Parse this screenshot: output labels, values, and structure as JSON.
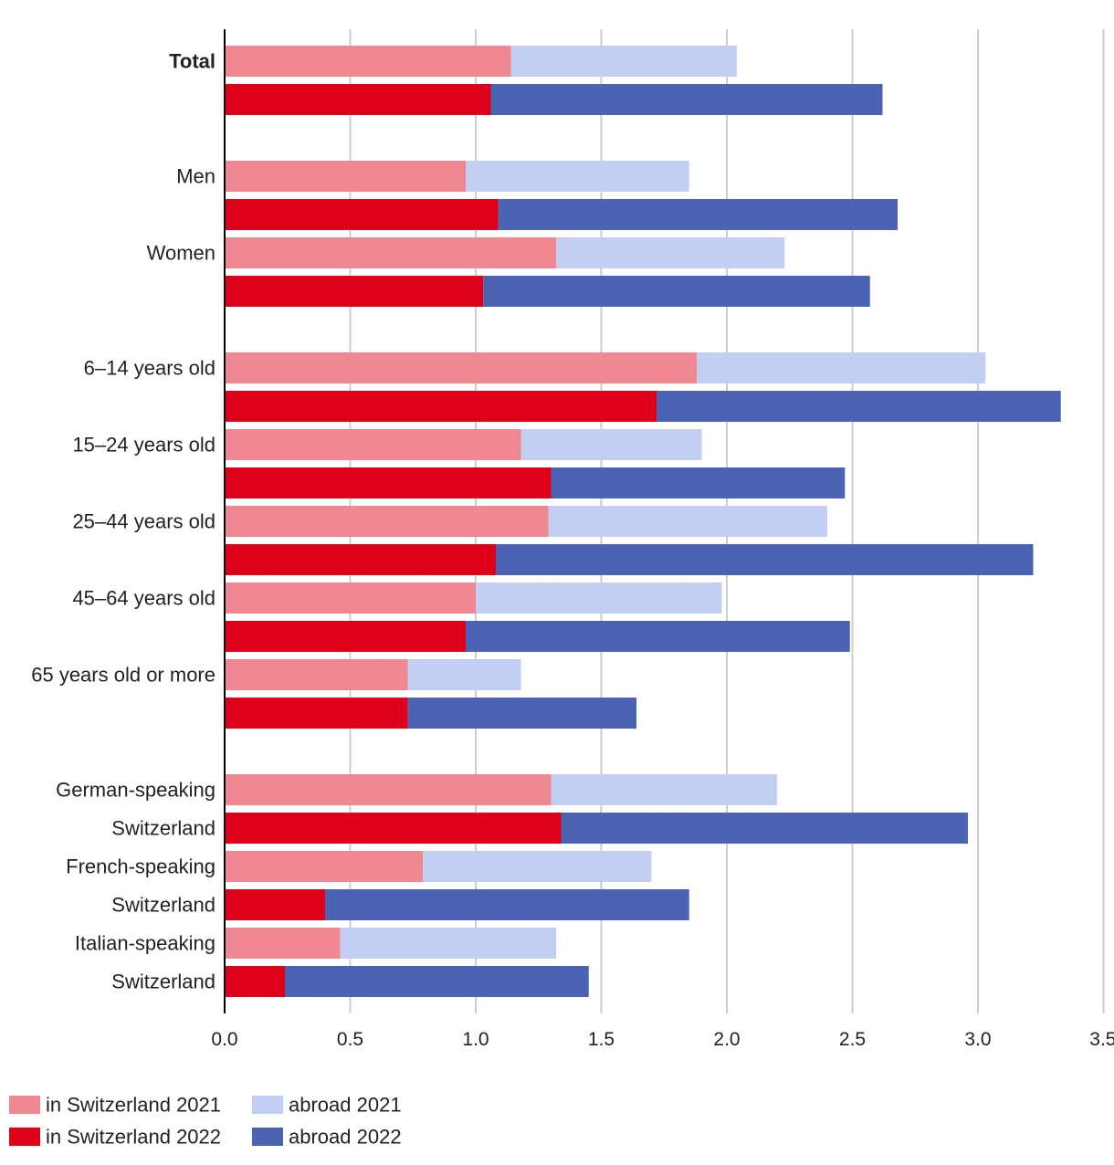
{
  "chart_data": {
    "type": "bar",
    "orientation": "horizontal",
    "stacked": true,
    "title": "",
    "xlabel": "",
    "ylabel": "",
    "xlim": [
      0,
      3.5
    ],
    "xticks": [
      "0.0",
      "0.5",
      "1.0",
      "1.5",
      "2.0",
      "2.5",
      "3.0",
      "3.5"
    ],
    "grid": true,
    "legend_position": "bottom-left",
    "series": [
      {
        "name": "in Switzerland 2021",
        "color": "#F08892"
      },
      {
        "name": "abroad 2021",
        "color": "#C3CFF2"
      },
      {
        "name": "in Switzerland 2022",
        "color": "#DE001A"
      },
      {
        "name": "abroad 2022",
        "color": "#4A63B2"
      }
    ],
    "groups": [
      {
        "label_lines": [
          "Total"
        ],
        "bold": true,
        "in_2021": 1.14,
        "abroad_2021": 0.9,
        "in_2022": 1.06,
        "abroad_2022": 1.56
      },
      {
        "label_lines": [
          "Men"
        ],
        "bold": false,
        "in_2021": 0.96,
        "abroad_2021": 0.89,
        "in_2022": 1.09,
        "abroad_2022": 1.59
      },
      {
        "label_lines": [
          "Women"
        ],
        "bold": false,
        "in_2021": 1.32,
        "abroad_2021": 0.91,
        "in_2022": 1.03,
        "abroad_2022": 1.54
      },
      {
        "label_lines": [
          "6–14 years old"
        ],
        "bold": false,
        "in_2021": 1.88,
        "abroad_2021": 1.15,
        "in_2022": 1.72,
        "abroad_2022": 1.61
      },
      {
        "label_lines": [
          "15–24 years old"
        ],
        "bold": false,
        "in_2021": 1.18,
        "abroad_2021": 0.72,
        "in_2022": 1.3,
        "abroad_2022": 1.17
      },
      {
        "label_lines": [
          "25–44 years old"
        ],
        "bold": false,
        "in_2021": 1.29,
        "abroad_2021": 1.11,
        "in_2022": 1.08,
        "abroad_2022": 2.14
      },
      {
        "label_lines": [
          "45–64 years old"
        ],
        "bold": false,
        "in_2021": 1.0,
        "abroad_2021": 0.98,
        "in_2022": 0.96,
        "abroad_2022": 1.53
      },
      {
        "label_lines": [
          "65 years old or more"
        ],
        "bold": false,
        "in_2021": 0.73,
        "abroad_2021": 0.45,
        "in_2022": 0.73,
        "abroad_2022": 0.91
      },
      {
        "label_lines": [
          "German-speaking",
          "Switzerland"
        ],
        "bold": false,
        "in_2021": 1.3,
        "abroad_2021": 0.9,
        "in_2022": 1.34,
        "abroad_2022": 1.62
      },
      {
        "label_lines": [
          "French-speaking",
          "Switzerland"
        ],
        "bold": false,
        "in_2021": 0.79,
        "abroad_2021": 0.91,
        "in_2022": 0.4,
        "abroad_2022": 1.45
      },
      {
        "label_lines": [
          "Italian-speaking",
          "Switzerland"
        ],
        "bold": false,
        "in_2021": 0.46,
        "abroad_2021": 0.86,
        "in_2022": 0.24,
        "abroad_2022": 1.21
      }
    ]
  }
}
